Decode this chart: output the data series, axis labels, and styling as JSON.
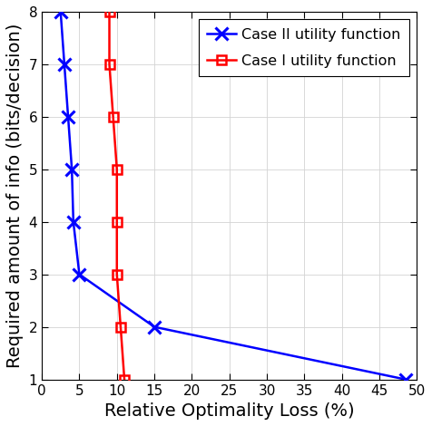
{
  "blue_x": [
    2.5,
    3.0,
    3.5,
    4.0,
    4.2,
    5.0,
    15.0,
    48.5
  ],
  "blue_y": [
    8,
    7,
    6,
    5,
    4,
    3,
    2,
    1
  ],
  "red_x": [
    9.0,
    9.0,
    9.5,
    10.0,
    10.0,
    10.0,
    10.5,
    11.0
  ],
  "red_y": [
    8,
    7,
    6,
    5,
    4,
    3,
    2,
    1
  ],
  "blue_color": "#0000FF",
  "red_color": "#FF0000",
  "blue_label": "Case II utility function",
  "red_label": "Case I utility function",
  "xlabel": "Relative Optimality Loss (%)",
  "ylabel": "Required amount of info (bits/decision)",
  "xlim": [
    0,
    50
  ],
  "ylim": [
    1,
    8
  ],
  "xticks": [
    0,
    5,
    10,
    15,
    20,
    25,
    30,
    35,
    40,
    45,
    50
  ],
  "yticks": [
    1,
    2,
    3,
    4,
    5,
    6,
    7,
    8
  ],
  "grid_color": "#d3d3d3",
  "background_color": "#ffffff",
  "legend_fontsize": 11.5,
  "axis_label_fontsize": 14,
  "tick_fontsize": 11
}
